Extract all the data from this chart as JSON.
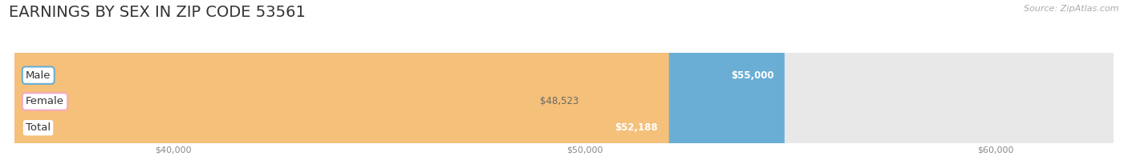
{
  "title": "EARNINGS BY SEX IN ZIP CODE 53561",
  "source": "Source: ZipAtlas.com",
  "categories": [
    "Male",
    "Female",
    "Total"
  ],
  "values": [
    55000,
    48523,
    52188
  ],
  "bar_colors": [
    "#6aaed6",
    "#f4a8c0",
    "#f5c07a"
  ],
  "bar_bg_color": "#e8e8e8",
  "label_colors": [
    "#ffffff",
    "#888888",
    "#ffffff"
  ],
  "xlim_min": 36000,
  "xlim_max": 63000,
  "xticks": [
    40000,
    50000,
    60000
  ],
  "xtick_labels": [
    "$40,000",
    "$50,000",
    "$60,000"
  ],
  "title_fontsize": 14,
  "title_color": "#333333",
  "bar_height": 0.52,
  "value_labels": [
    "$55,000",
    "$48,523",
    "$52,188"
  ],
  "background_color": "#ffffff",
  "source_color": "#aaaaaa",
  "source_fontsize": 8,
  "category_fontsize": 9.5,
  "value_fontsize": 8.5
}
